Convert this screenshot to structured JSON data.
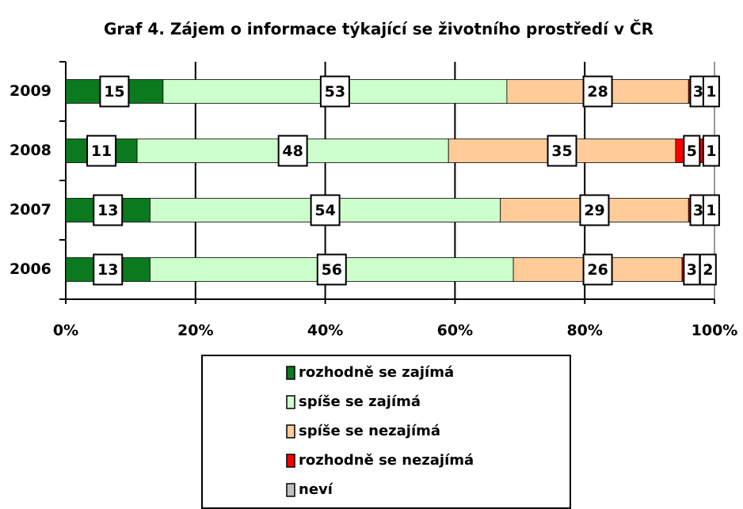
{
  "chart_data": {
    "type": "bar",
    "orientation": "horizontal",
    "stacked": true,
    "title": "Graf 4. Zájem o informace týkající se životního prostředí v ČR",
    "categories": [
      "2009",
      "2008",
      "2007",
      "2006"
    ],
    "series": [
      {
        "name": "rozhodně se zajímá",
        "color": "#0b7a1f",
        "values": [
          15,
          11,
          13,
          13
        ]
      },
      {
        "name": "spíše se zajímá",
        "color": "#ccffcc",
        "values": [
          53,
          48,
          54,
          56
        ]
      },
      {
        "name": "spíše se nezajímá",
        "color": "#ffcc99",
        "values": [
          28,
          35,
          29,
          26
        ]
      },
      {
        "name": "rozhodně se nezajímá",
        "color": "#ff0000",
        "values": [
          3,
          5,
          3,
          3
        ]
      },
      {
        "name": "neví",
        "color": "#c0c0c0",
        "values": [
          1,
          1,
          1,
          2
        ]
      }
    ],
    "xlim": [
      0,
      100
    ],
    "xticks": [
      {
        "value": 0,
        "label": "0%"
      },
      {
        "value": 20,
        "label": "20%"
      },
      {
        "value": 40,
        "label": "40%"
      },
      {
        "value": 60,
        "label": "60%"
      },
      {
        "value": 80,
        "label": "80%"
      },
      {
        "value": 100,
        "label": "100%"
      }
    ],
    "grid": true,
    "legend": "bottom"
  }
}
